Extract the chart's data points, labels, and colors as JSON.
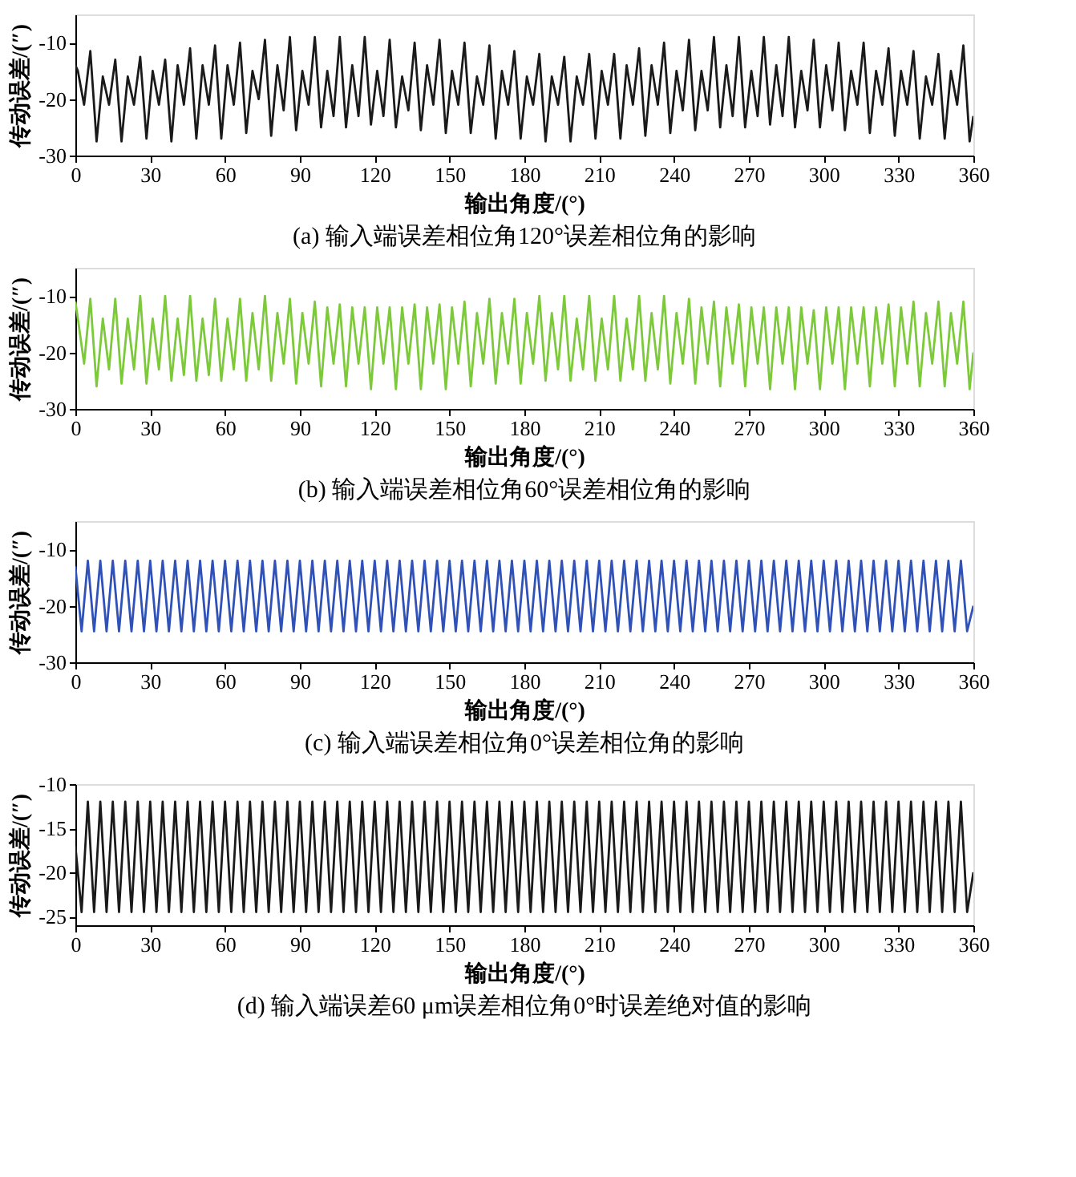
{
  "chart_data": [
    {
      "type": "line",
      "title": "(a) 输入端误差相位角120°误差相位角的影响",
      "xlabel": "输出角度/(°)",
      "ylabel": "传动误差/(″)",
      "grid": false,
      "xlim": [
        0,
        360
      ],
      "xticks": [
        0,
        30,
        60,
        90,
        120,
        150,
        180,
        210,
        240,
        270,
        300,
        330,
        360
      ],
      "ylim": [
        -30,
        -5
      ],
      "yticks": [
        -30,
        -20,
        -10
      ],
      "x": [
        0,
        1,
        3.5,
        6,
        8.5,
        11,
        13.5,
        16,
        18.5,
        21,
        23.5,
        26,
        28.5,
        31,
        33.5,
        36,
        38.5,
        41,
        43.5,
        46,
        48.5,
        51,
        53.5,
        56,
        58.5,
        61,
        63.5,
        66,
        68.5,
        71,
        73.5,
        76,
        78.5,
        81,
        83.5,
        86,
        88.5,
        91,
        93.5,
        96,
        98.5,
        101,
        103.5,
        106,
        108.5,
        111,
        113.5,
        116,
        118.5,
        121,
        123.5,
        126,
        128.5,
        131,
        133.5,
        136,
        138.5,
        141,
        143.5,
        146,
        148.5,
        151,
        153.5,
        156,
        158.5,
        161,
        163.5,
        166,
        168.5,
        171,
        173.5,
        176,
        178.5,
        181,
        183.5,
        186,
        188.5,
        191,
        193.5,
        196,
        198.5,
        201,
        203.5,
        206,
        208.5,
        211,
        213.5,
        216,
        218.5,
        221,
        223.5,
        226,
        228.5,
        231,
        233.5,
        236,
        238.5,
        241,
        243.5,
        246,
        248.5,
        251,
        253.5,
        256,
        258.5,
        261,
        263.5,
        266,
        268.5,
        271,
        273.5,
        276,
        278.5,
        281,
        283.5,
        286,
        288.5,
        291,
        293.5,
        296,
        298.5,
        301,
        303.5,
        306,
        308.5,
        311,
        313.5,
        316,
        318.5,
        321,
        323.5,
        326,
        328.5,
        331,
        333.5,
        336,
        338.5,
        341,
        343.5,
        346,
        348.5,
        351,
        353.5,
        356,
        358.5,
        360
      ],
      "series": [
        {
          "color": "#1a1a1a",
          "values": [
            -14,
            -15,
            -21,
            -11.5,
            -27.5,
            -16,
            -21,
            -13,
            -27.5,
            -16,
            -21,
            -12.5,
            -27,
            -15,
            -21,
            -13,
            -27.5,
            -14,
            -21,
            -11,
            -27,
            -14,
            -21,
            -10.5,
            -27,
            -14,
            -21,
            -10,
            -26,
            -15,
            -20,
            -9.5,
            -26.5,
            -14,
            -22,
            -9,
            -25.5,
            -15,
            -21,
            -9,
            -25,
            -15,
            -23,
            -9,
            -25,
            -14,
            -23,
            -9,
            -24.5,
            -15,
            -23,
            -9.5,
            -25,
            -16,
            -22,
            -10,
            -25.5,
            -14,
            -21,
            -9.5,
            -26,
            -15,
            -21,
            -10,
            -26,
            -16,
            -21,
            -10.5,
            -27,
            -15,
            -21,
            -11.5,
            -27,
            -16,
            -21,
            -12,
            -27.5,
            -16,
            -21,
            -12.5,
            -27.5,
            -16,
            -21,
            -12,
            -27,
            -15,
            -21,
            -12,
            -27,
            -14,
            -21,
            -11,
            -26.5,
            -14,
            -21,
            -10,
            -26,
            -15,
            -22,
            -9.5,
            -25.5,
            -15,
            -22,
            -9,
            -25,
            -14,
            -23,
            -9,
            -25,
            -15,
            -23,
            -9,
            -24.5,
            -14,
            -23,
            -9,
            -25,
            -15,
            -22,
            -9.5,
            -25,
            -14,
            -22,
            -10,
            -25.5,
            -15,
            -21,
            -10,
            -26,
            -15,
            -21,
            -11,
            -26.5,
            -15,
            -21,
            -11.5,
            -27,
            -16,
            -21,
            -12,
            -27,
            -15,
            -21,
            -10.5,
            -27.5,
            -23
          ]
        }
      ]
    },
    {
      "type": "line",
      "title": "(b) 输入端误差相位角60°误差相位角的影响",
      "xlabel": "输出角度/(°)",
      "ylabel": "传动误差/(″)",
      "grid": false,
      "xlim": [
        0,
        360
      ],
      "xticks": [
        0,
        30,
        60,
        90,
        120,
        150,
        180,
        210,
        240,
        270,
        300,
        330,
        360
      ],
      "ylim": [
        -30,
        -5
      ],
      "yticks": [
        -30,
        -20,
        -10
      ],
      "x": [
        0,
        1,
        3.5,
        6,
        8.5,
        11,
        13.5,
        16,
        18.5,
        21,
        23.5,
        26,
        28.5,
        31,
        33.5,
        36,
        38.5,
        41,
        43.5,
        46,
        48.5,
        51,
        53.5,
        56,
        58.5,
        61,
        63.5,
        66,
        68.5,
        71,
        73.5,
        76,
        78.5,
        81,
        83.5,
        86,
        88.5,
        91,
        93.5,
        96,
        98.5,
        101,
        103.5,
        106,
        108.5,
        111,
        113.5,
        116,
        118.5,
        121,
        123.5,
        126,
        128.5,
        131,
        133.5,
        136,
        138.5,
        141,
        143.5,
        146,
        148.5,
        151,
        153.5,
        156,
        158.5,
        161,
        163.5,
        166,
        168.5,
        171,
        173.5,
        176,
        178.5,
        181,
        183.5,
        186,
        188.5,
        191,
        193.5,
        196,
        198.5,
        201,
        203.5,
        206,
        208.5,
        211,
        213.5,
        216,
        218.5,
        221,
        223.5,
        226,
        228.5,
        231,
        233.5,
        236,
        238.5,
        241,
        243.5,
        246,
        248.5,
        251,
        253.5,
        256,
        258.5,
        261,
        263.5,
        266,
        268.5,
        271,
        273.5,
        276,
        278.5,
        281,
        283.5,
        286,
        288.5,
        291,
        293.5,
        296,
        298.5,
        301,
        303.5,
        306,
        308.5,
        311,
        313.5,
        316,
        318.5,
        321,
        323.5,
        326,
        328.5,
        331,
        333.5,
        336,
        338.5,
        341,
        343.5,
        346,
        348.5,
        351,
        353.5,
        356,
        358.5,
        360
      ],
      "series": [
        {
          "color": "#7cc93a",
          "values": [
            -11,
            -14,
            -22,
            -10.5,
            -26,
            -14,
            -23,
            -10.5,
            -25.5,
            -14,
            -23,
            -10,
            -25.5,
            -14,
            -23,
            -10,
            -25,
            -14,
            -24,
            -10,
            -25,
            -14,
            -24,
            -10.5,
            -25,
            -14,
            -23,
            -10.5,
            -25,
            -13,
            -23,
            -10,
            -25,
            -13,
            -22,
            -10.5,
            -25.5,
            -13,
            -22,
            -11,
            -26,
            -12,
            -22,
            -11.5,
            -26,
            -12,
            -22,
            -12,
            -26.5,
            -12,
            -22,
            -12,
            -26.5,
            -12,
            -22,
            -11.5,
            -26.5,
            -12,
            -22,
            -11.5,
            -26.5,
            -12,
            -22,
            -11,
            -26,
            -13,
            -22,
            -10.5,
            -25.5,
            -13,
            -22,
            -10.5,
            -25.5,
            -13,
            -22,
            -10,
            -25,
            -13,
            -23,
            -10,
            -25,
            -14,
            -23,
            -10,
            -25,
            -14,
            -23,
            -10,
            -25,
            -14,
            -23,
            -10,
            -25,
            -13,
            -23,
            -10,
            -25.5,
            -13,
            -22,
            -10.5,
            -25.5,
            -12,
            -22,
            -11,
            -26,
            -12,
            -22,
            -11.5,
            -26,
            -12,
            -22,
            -12,
            -26.5,
            -12,
            -22,
            -12,
            -26.5,
            -12,
            -22,
            -12.5,
            -26.5,
            -12,
            -22,
            -12,
            -26.5,
            -12,
            -22,
            -12,
            -26,
            -12,
            -22,
            -11.5,
            -26,
            -12,
            -22,
            -11,
            -26,
            -13,
            -22,
            -11,
            -26,
            -13,
            -22,
            -11,
            -26.5,
            -20
          ]
        }
      ]
    },
    {
      "type": "line",
      "title": "(c) 输入端误差相位角0°误差相位角的影响",
      "xlabel": "输出角度/(°)",
      "ylabel": "传动误差/(″)",
      "grid": false,
      "xlim": [
        0,
        360
      ],
      "xticks": [
        0,
        30,
        60,
        90,
        120,
        150,
        180,
        210,
        240,
        270,
        300,
        330,
        360
      ],
      "ylim": [
        -30,
        -5
      ],
      "yticks": [
        -30,
        -20,
        -10
      ],
      "x": [
        0,
        2.5,
        5,
        7.5,
        10,
        12.5,
        15,
        17.5,
        20,
        22.5,
        25,
        27.5,
        30,
        32.5,
        35,
        37.5,
        40,
        42.5,
        45,
        47.5,
        50,
        52.5,
        55,
        57.5,
        60,
        62.5,
        65,
        67.5,
        70,
        72.5,
        75,
        77.5,
        80,
        82.5,
        85,
        87.5,
        90,
        92.5,
        95,
        97.5,
        100,
        102.5,
        105,
        107.5,
        110,
        112.5,
        115,
        117.5,
        120,
        122.5,
        125,
        127.5,
        130,
        132.5,
        135,
        137.5,
        140,
        142.5,
        145,
        147.5,
        150,
        152.5,
        155,
        157.5,
        160,
        162.5,
        165,
        167.5,
        170,
        172.5,
        175,
        177.5,
        180,
        182.5,
        185,
        187.5,
        190,
        192.5,
        195,
        197.5,
        200,
        202.5,
        205,
        207.5,
        210,
        212.5,
        215,
        217.5,
        220,
        222.5,
        225,
        227.5,
        230,
        232.5,
        235,
        237.5,
        240,
        242.5,
        245,
        247.5,
        250,
        252.5,
        255,
        257.5,
        260,
        262.5,
        265,
        267.5,
        270,
        272.5,
        275,
        277.5,
        280,
        282.5,
        285,
        287.5,
        290,
        292.5,
        295,
        297.5,
        300,
        302.5,
        305,
        307.5,
        310,
        312.5,
        315,
        317.5,
        320,
        322.5,
        325,
        327.5,
        330,
        332.5,
        335,
        337.5,
        340,
        342.5,
        345,
        347.5,
        350,
        352.5,
        355,
        357.5,
        360
      ],
      "series": [
        {
          "color": "#2f51b8",
          "values": [
            -13,
            -24.5,
            -12,
            -24.5,
            -12,
            -24.5,
            -12,
            -24.5,
            -12,
            -24.5,
            -12,
            -24.5,
            -12,
            -24.5,
            -12,
            -24.5,
            -12,
            -24.5,
            -12,
            -24.5,
            -12,
            -24.5,
            -12,
            -24.5,
            -12,
            -24.5,
            -12,
            -24.5,
            -12,
            -24.5,
            -12,
            -24.5,
            -12,
            -24.5,
            -12,
            -24.5,
            -12,
            -24.5,
            -12,
            -24.5,
            -12,
            -24.5,
            -12,
            -24.5,
            -12,
            -24.5,
            -12,
            -24.5,
            -12,
            -24.5,
            -12,
            -24.5,
            -12,
            -24.5,
            -12,
            -24.5,
            -12,
            -24.5,
            -12,
            -24.5,
            -12,
            -24.5,
            -12,
            -24.5,
            -12,
            -24.5,
            -12,
            -24.5,
            -12,
            -24.5,
            -12,
            -24.5,
            -12,
            -24.5,
            -12,
            -24.5,
            -12,
            -24.5,
            -12,
            -24.5,
            -12,
            -24.5,
            -12,
            -24.5,
            -12,
            -24.5,
            -12,
            -24.5,
            -12,
            -24.5,
            -12,
            -24.5,
            -12,
            -24.5,
            -12,
            -24.5,
            -12,
            -24.5,
            -12,
            -24.5,
            -12,
            -24.5,
            -12,
            -24.5,
            -12,
            -24.5,
            -12,
            -24.5,
            -12,
            -24.5,
            -12,
            -24.5,
            -12,
            -24.5,
            -12,
            -24.5,
            -12,
            -24.5,
            -12,
            -24.5,
            -12,
            -24.5,
            -12,
            -24.5,
            -12,
            -24.5,
            -12,
            -24.5,
            -12,
            -24.5,
            -12,
            -24.5,
            -12,
            -24.5,
            -12,
            -24.5,
            -12,
            -24.5,
            -12,
            -24.5,
            -12,
            -24.5,
            -12,
            -24.5,
            -20
          ]
        }
      ]
    },
    {
      "type": "line",
      "title": "(d) 输入端误差60 μm误差相位角0°时误差绝对值的影响",
      "xlabel": "输出角度/(°)",
      "ylabel": "传动误差/(″)",
      "grid": false,
      "xlim": [
        0,
        360
      ],
      "xticks": [
        0,
        30,
        60,
        90,
        120,
        150,
        180,
        210,
        240,
        270,
        300,
        330,
        360
      ],
      "ylim": [
        -26,
        -10
      ],
      "yticks": [
        -25,
        -20,
        -15,
        -10
      ],
      "x": [
        0,
        2.5,
        5,
        7.5,
        10,
        12.5,
        15,
        17.5,
        20,
        22.5,
        25,
        27.5,
        30,
        32.5,
        35,
        37.5,
        40,
        42.5,
        45,
        47.5,
        50,
        52.5,
        55,
        57.5,
        60,
        62.5,
        65,
        67.5,
        70,
        72.5,
        75,
        77.5,
        80,
        82.5,
        85,
        87.5,
        90,
        92.5,
        95,
        97.5,
        100,
        102.5,
        105,
        107.5,
        110,
        112.5,
        115,
        117.5,
        120,
        122.5,
        125,
        127.5,
        130,
        132.5,
        135,
        137.5,
        140,
        142.5,
        145,
        147.5,
        150,
        152.5,
        155,
        157.5,
        160,
        162.5,
        165,
        167.5,
        170,
        172.5,
        175,
        177.5,
        180,
        182.5,
        185,
        187.5,
        190,
        192.5,
        195,
        197.5,
        200,
        202.5,
        205,
        207.5,
        210,
        212.5,
        215,
        217.5,
        220,
        222.5,
        225,
        227.5,
        230,
        232.5,
        235,
        237.5,
        240,
        242.5,
        245,
        247.5,
        250,
        252.5,
        255,
        257.5,
        260,
        262.5,
        265,
        267.5,
        270,
        272.5,
        275,
        277.5,
        280,
        282.5,
        285,
        287.5,
        290,
        292.5,
        295,
        297.5,
        300,
        302.5,
        305,
        307.5,
        310,
        312.5,
        315,
        317.5,
        320,
        322.5,
        325,
        327.5,
        330,
        332.5,
        335,
        337.5,
        340,
        342.5,
        345,
        347.5,
        350,
        352.5,
        355,
        357.5,
        360
      ],
      "series": [
        {
          "color": "#1a1a1a",
          "values": [
            -17,
            -24.5,
            -12,
            -24.5,
            -12,
            -24.5,
            -12,
            -24.5,
            -12,
            -24.5,
            -12,
            -24.5,
            -12,
            -24.5,
            -12,
            -24.5,
            -12,
            -24.5,
            -12,
            -24.5,
            -12,
            -24.5,
            -12,
            -24.5,
            -12,
            -24.5,
            -12,
            -24.5,
            -12,
            -24.5,
            -12,
            -24.5,
            -12,
            -24.5,
            -12,
            -24.5,
            -12,
            -24.5,
            -12,
            -24.5,
            -12,
            -24.5,
            -12,
            -24.5,
            -12,
            -24.5,
            -12,
            -24.5,
            -12,
            -24.5,
            -12,
            -24.5,
            -12,
            -24.5,
            -12,
            -24.5,
            -12,
            -24.5,
            -12,
            -24.5,
            -12,
            -24.5,
            -12,
            -24.5,
            -12,
            -24.5,
            -12,
            -24.5,
            -12,
            -24.5,
            -12,
            -24.5,
            -12,
            -24.5,
            -12,
            -24.5,
            -12,
            -24.5,
            -12,
            -24.5,
            -12,
            -24.5,
            -12,
            -24.5,
            -12,
            -24.5,
            -12,
            -24.5,
            -12,
            -24.5,
            -12,
            -24.5,
            -12,
            -24.5,
            -12,
            -24.5,
            -12,
            -24.5,
            -12,
            -24.5,
            -12,
            -24.5,
            -12,
            -24.5,
            -12,
            -24.5,
            -12,
            -24.5,
            -12,
            -24.5,
            -12,
            -24.5,
            -12,
            -24.5,
            -12,
            -24.5,
            -12,
            -24.5,
            -12,
            -24.5,
            -12,
            -24.5,
            -12,
            -24.5,
            -12,
            -24.5,
            -12,
            -24.5,
            -12,
            -24.5,
            -12,
            -24.5,
            -12,
            -24.5,
            -12,
            -24.5,
            -12,
            -24.5,
            -12,
            -24.5,
            -12,
            -24.5,
            -12,
            -24.5,
            -20
          ]
        }
      ]
    }
  ]
}
